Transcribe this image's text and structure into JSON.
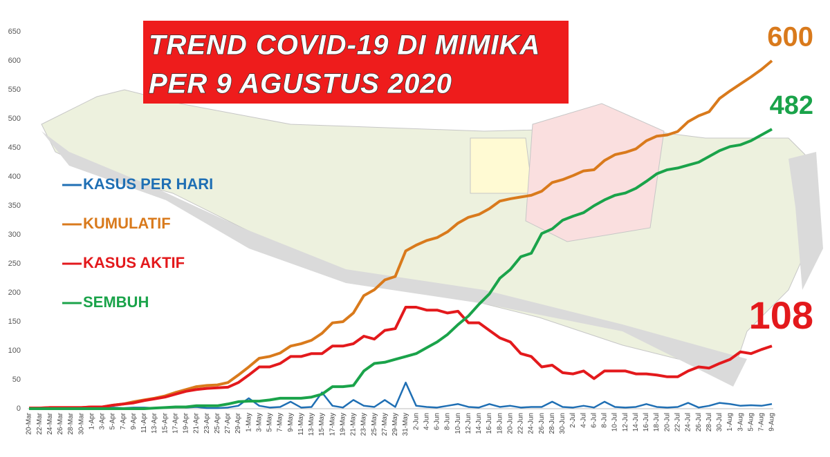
{
  "chart_data": {
    "type": "line",
    "title": [
      "TREND COVID-19 DI MIMIKA",
      "PER 9 AGUSTUS 2020"
    ],
    "categories": [
      "20-Mar",
      "22-Mar",
      "24-Mar",
      "26-Mar",
      "28-Mar",
      "30-Mar",
      "1-Apr",
      "3-Apr",
      "5-Apr",
      "7-Apr",
      "9-Apr",
      "11-Apr",
      "13-Apr",
      "15-Apr",
      "17-Apr",
      "19-Apr",
      "21-Apr",
      "23-Apr",
      "25-Apr",
      "27-Apr",
      "29-Apr",
      "1-May",
      "3-May",
      "5-May",
      "7-May",
      "9-May",
      "11-May",
      "13-May",
      "15-May",
      "17-May",
      "19-May",
      "21-May",
      "23-May",
      "25-May",
      "27-May",
      "29-May",
      "31-May",
      "2-Jun",
      "4-Jun",
      "6-Jun",
      "8-Jun",
      "10-Jun",
      "12-Jun",
      "14-Jun",
      "16-Jun",
      "18-Jun",
      "20-Jun",
      "22-Jun",
      "24-Jun",
      "26-Jun",
      "28-Jun",
      "30-Jun",
      "2-Jul",
      "4-Jul",
      "6-Jul",
      "8-Jul",
      "10-Jul",
      "12-Jul",
      "14-Jul",
      "16-Jul",
      "18-Jul",
      "20-Jul",
      "22-Jul",
      "24-Jul",
      "26-Jul",
      "28-Jul",
      "30-Jul",
      "1-Aug",
      "3-Aug",
      "5-Aug",
      "7-Aug",
      "9-Aug"
    ],
    "series": [
      {
        "name": "KASUS PER HARI",
        "color": "#1f6fb4",
        "end_label": false,
        "values": [
          1,
          0,
          0,
          0,
          0,
          0,
          1,
          0,
          2,
          1,
          2,
          2,
          1,
          2,
          3,
          2,
          3,
          1,
          1,
          2,
          5,
          18,
          5,
          2,
          3,
          12,
          2,
          3,
          28,
          5,
          2,
          15,
          5,
          3,
          15,
          3,
          45,
          5,
          3,
          2,
          5,
          8,
          3,
          2,
          8,
          3,
          5,
          2,
          3,
          3,
          12,
          3,
          2,
          5,
          2,
          12,
          3,
          2,
          3,
          8,
          3,
          2,
          3,
          10,
          2,
          5,
          10,
          8,
          5,
          6,
          5,
          8
        ]
      },
      {
        "name": "KUMULATIF",
        "color": "#d97a1c",
        "end_label": true,
        "values": [
          1,
          1,
          2,
          2,
          2,
          2,
          3,
          3,
          6,
          8,
          12,
          15,
          18,
          22,
          28,
          33,
          38,
          40,
          41,
          45,
          58,
          72,
          87,
          90,
          96,
          108,
          112,
          118,
          130,
          148,
          150,
          165,
          195,
          205,
          222,
          228,
          272,
          282,
          290,
          295,
          305,
          320,
          330,
          335,
          345,
          358,
          362,
          365,
          368,
          375,
          390,
          395,
          402,
          410,
          412,
          428,
          438,
          442,
          448,
          462,
          470,
          472,
          478,
          495,
          505,
          512,
          535,
          548,
          560,
          572,
          585,
          600
        ]
      },
      {
        "name": "KASUS AKTIF",
        "color": "#e3191c",
        "end_label": true,
        "values": [
          1,
          1,
          2,
          2,
          2,
          2,
          3,
          3,
          6,
          8,
          10,
          14,
          17,
          20,
          25,
          30,
          33,
          35,
          36,
          37,
          45,
          58,
          72,
          72,
          78,
          90,
          90,
          95,
          95,
          108,
          108,
          112,
          125,
          120,
          135,
          138,
          175,
          175,
          170,
          170,
          165,
          168,
          148,
          148,
          135,
          122,
          115,
          95,
          90,
          72,
          75,
          62,
          60,
          65,
          52,
          65,
          65,
          65,
          60,
          60,
          58,
          55,
          55,
          65,
          72,
          70,
          78,
          85,
          98,
          95,
          102,
          108
        ]
      },
      {
        "name": "SEMBUH",
        "color": "#1aa34a",
        "end_label": true,
        "values": [
          0,
          0,
          0,
          0,
          0,
          0,
          0,
          0,
          0,
          0,
          0,
          0,
          1,
          2,
          3,
          3,
          5,
          5,
          5,
          8,
          12,
          13,
          13,
          15,
          18,
          18,
          18,
          20,
          25,
          38,
          38,
          40,
          65,
          78,
          80,
          85,
          90,
          95,
          105,
          115,
          128,
          145,
          160,
          180,
          198,
          225,
          240,
          262,
          268,
          302,
          310,
          325,
          332,
          338,
          350,
          360,
          368,
          372,
          380,
          392,
          405,
          412,
          415,
          420,
          425,
          435,
          445,
          452,
          455,
          462,
          472,
          482
        ]
      }
    ],
    "ylim": [
      0,
      650
    ],
    "yticks": [
      0,
      50,
      100,
      150,
      200,
      250,
      300,
      350,
      400,
      450,
      500,
      550,
      600,
      650
    ],
    "grid": false
  }
}
